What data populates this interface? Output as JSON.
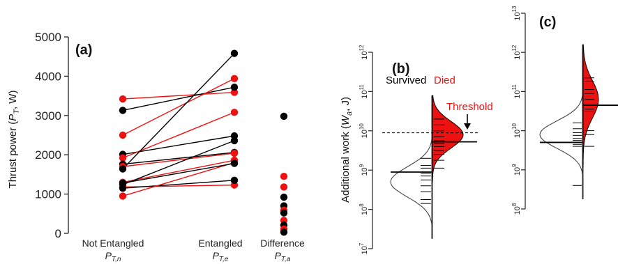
{
  "chart_data": [
    {
      "panel": "(a)",
      "type": "scatter",
      "ylabel_main": "Thrust power (",
      "ylabel_sym": "P",
      "ylabel_sub": "T",
      "ylabel_tail": ", W)",
      "ylim": [
        0,
        5000
      ],
      "yticks": [
        "0",
        "1000",
        "2000",
        "3000",
        "4000",
        "5000"
      ],
      "categories": [
        {
          "label": "Not Entangled",
          "sym": "P",
          "sub": "T,n"
        },
        {
          "label": "Entangled",
          "sym": "P",
          "sub": "T,e"
        },
        {
          "label": "Difference",
          "sym": "P",
          "sub": "T,a"
        }
      ],
      "colors": {
        "survived": "#000000",
        "died": "#ee1111"
      },
      "pairs": [
        {
          "group": "died",
          "not_entangled": 3420,
          "entangled": 3590
        },
        {
          "group": "survived",
          "not_entangled": 3130,
          "entangled": 3720
        },
        {
          "group": "died",
          "not_entangled": 2500,
          "entangled": 3940
        },
        {
          "group": "survived",
          "not_entangled": 2010,
          "entangled": 2480
        },
        {
          "group": "died",
          "not_entangled": 1920,
          "entangled": 3080
        },
        {
          "group": "survived",
          "not_entangled": 1760,
          "entangled": 2060
        },
        {
          "group": "died",
          "not_entangled": 1700,
          "entangled": 2040
        },
        {
          "group": "survived",
          "not_entangled": 1640,
          "entangled": 4580
        },
        {
          "group": "died",
          "not_entangled": 1300,
          "entangled": 1860
        },
        {
          "group": "survived",
          "not_entangled": 1240,
          "entangled": 2360
        },
        {
          "group": "died",
          "not_entangled": 1180,
          "entangled": 1230
        },
        {
          "group": "survived",
          "not_entangled": 1150,
          "entangled": 1350
        },
        {
          "group": "died",
          "not_entangled": 950,
          "entangled": 1800
        },
        {
          "group": "survived",
          "not_entangled": 1280,
          "entangled": 1780
        }
      ],
      "difference": [
        {
          "group": "survived",
          "value": 2980
        },
        {
          "group": "died",
          "value": 1450
        },
        {
          "group": "died",
          "value": 1180
        },
        {
          "group": "survived",
          "value": 920
        },
        {
          "group": "survived",
          "value": 700
        },
        {
          "group": "died",
          "value": 590
        },
        {
          "group": "survived",
          "value": 520
        },
        {
          "group": "died",
          "value": 330
        },
        {
          "group": "survived",
          "value": 210
        },
        {
          "group": "died",
          "value": 110
        },
        {
          "group": "survived",
          "value": 30
        }
      ]
    },
    {
      "panel": "(b)",
      "type": "area",
      "scale": "log",
      "ylabel_main": "Additional work (",
      "ylabel_sym": "W",
      "ylabel_sub": "a",
      "ylabel_tail": ", J)",
      "ylim_exp": [
        7,
        12
      ],
      "legend_survived": "Survived",
      "legend_died": "Died",
      "threshold_label": "Threshold",
      "threshold_exp": 9.95,
      "survived_median_exp": 8.95,
      "died_median_exp": 9.72,
      "survived_density": {
        "mode_exp": 8.7,
        "sd": 0.38,
        "lo_exp": 7.25,
        "hi_exp": 10.25
      },
      "died_density": {
        "mode_exp": 9.9,
        "sd": 0.34,
        "lo_exp": 8.7,
        "hi_exp": 10.9
      },
      "survived_values_exp": [
        8.15,
        8.25,
        8.45,
        8.6,
        8.75,
        8.85,
        8.92,
        9.05,
        9.12,
        9.3
      ],
      "died_values_exp": [
        9.05,
        9.25,
        9.4,
        9.5,
        9.6,
        9.68,
        9.75,
        9.85,
        10.0,
        10.15,
        10.3
      ]
    },
    {
      "panel": "(c)",
      "type": "area",
      "scale": "log",
      "ylim_exp": [
        8,
        13
      ],
      "survived_median_exp": 9.7,
      "died_median_exp": 10.65,
      "survived_density": {
        "mode_exp": 9.9,
        "sd": 0.35,
        "lo_exp": 8.25,
        "hi_exp": 11.0
      },
      "died_density": {
        "mode_exp": 10.8,
        "sd": 0.48,
        "lo_exp": 9.05,
        "hi_exp": 12.2
      },
      "survived_values_exp": [
        8.6,
        9.6,
        9.65,
        9.7,
        9.75,
        9.8,
        9.88,
        9.95,
        10.05,
        10.2
      ],
      "died_values_exp": [
        9.6,
        9.9,
        10.0,
        10.5,
        10.55,
        10.65,
        10.8,
        10.95,
        11.05,
        11.25,
        11.35
      ]
    }
  ]
}
